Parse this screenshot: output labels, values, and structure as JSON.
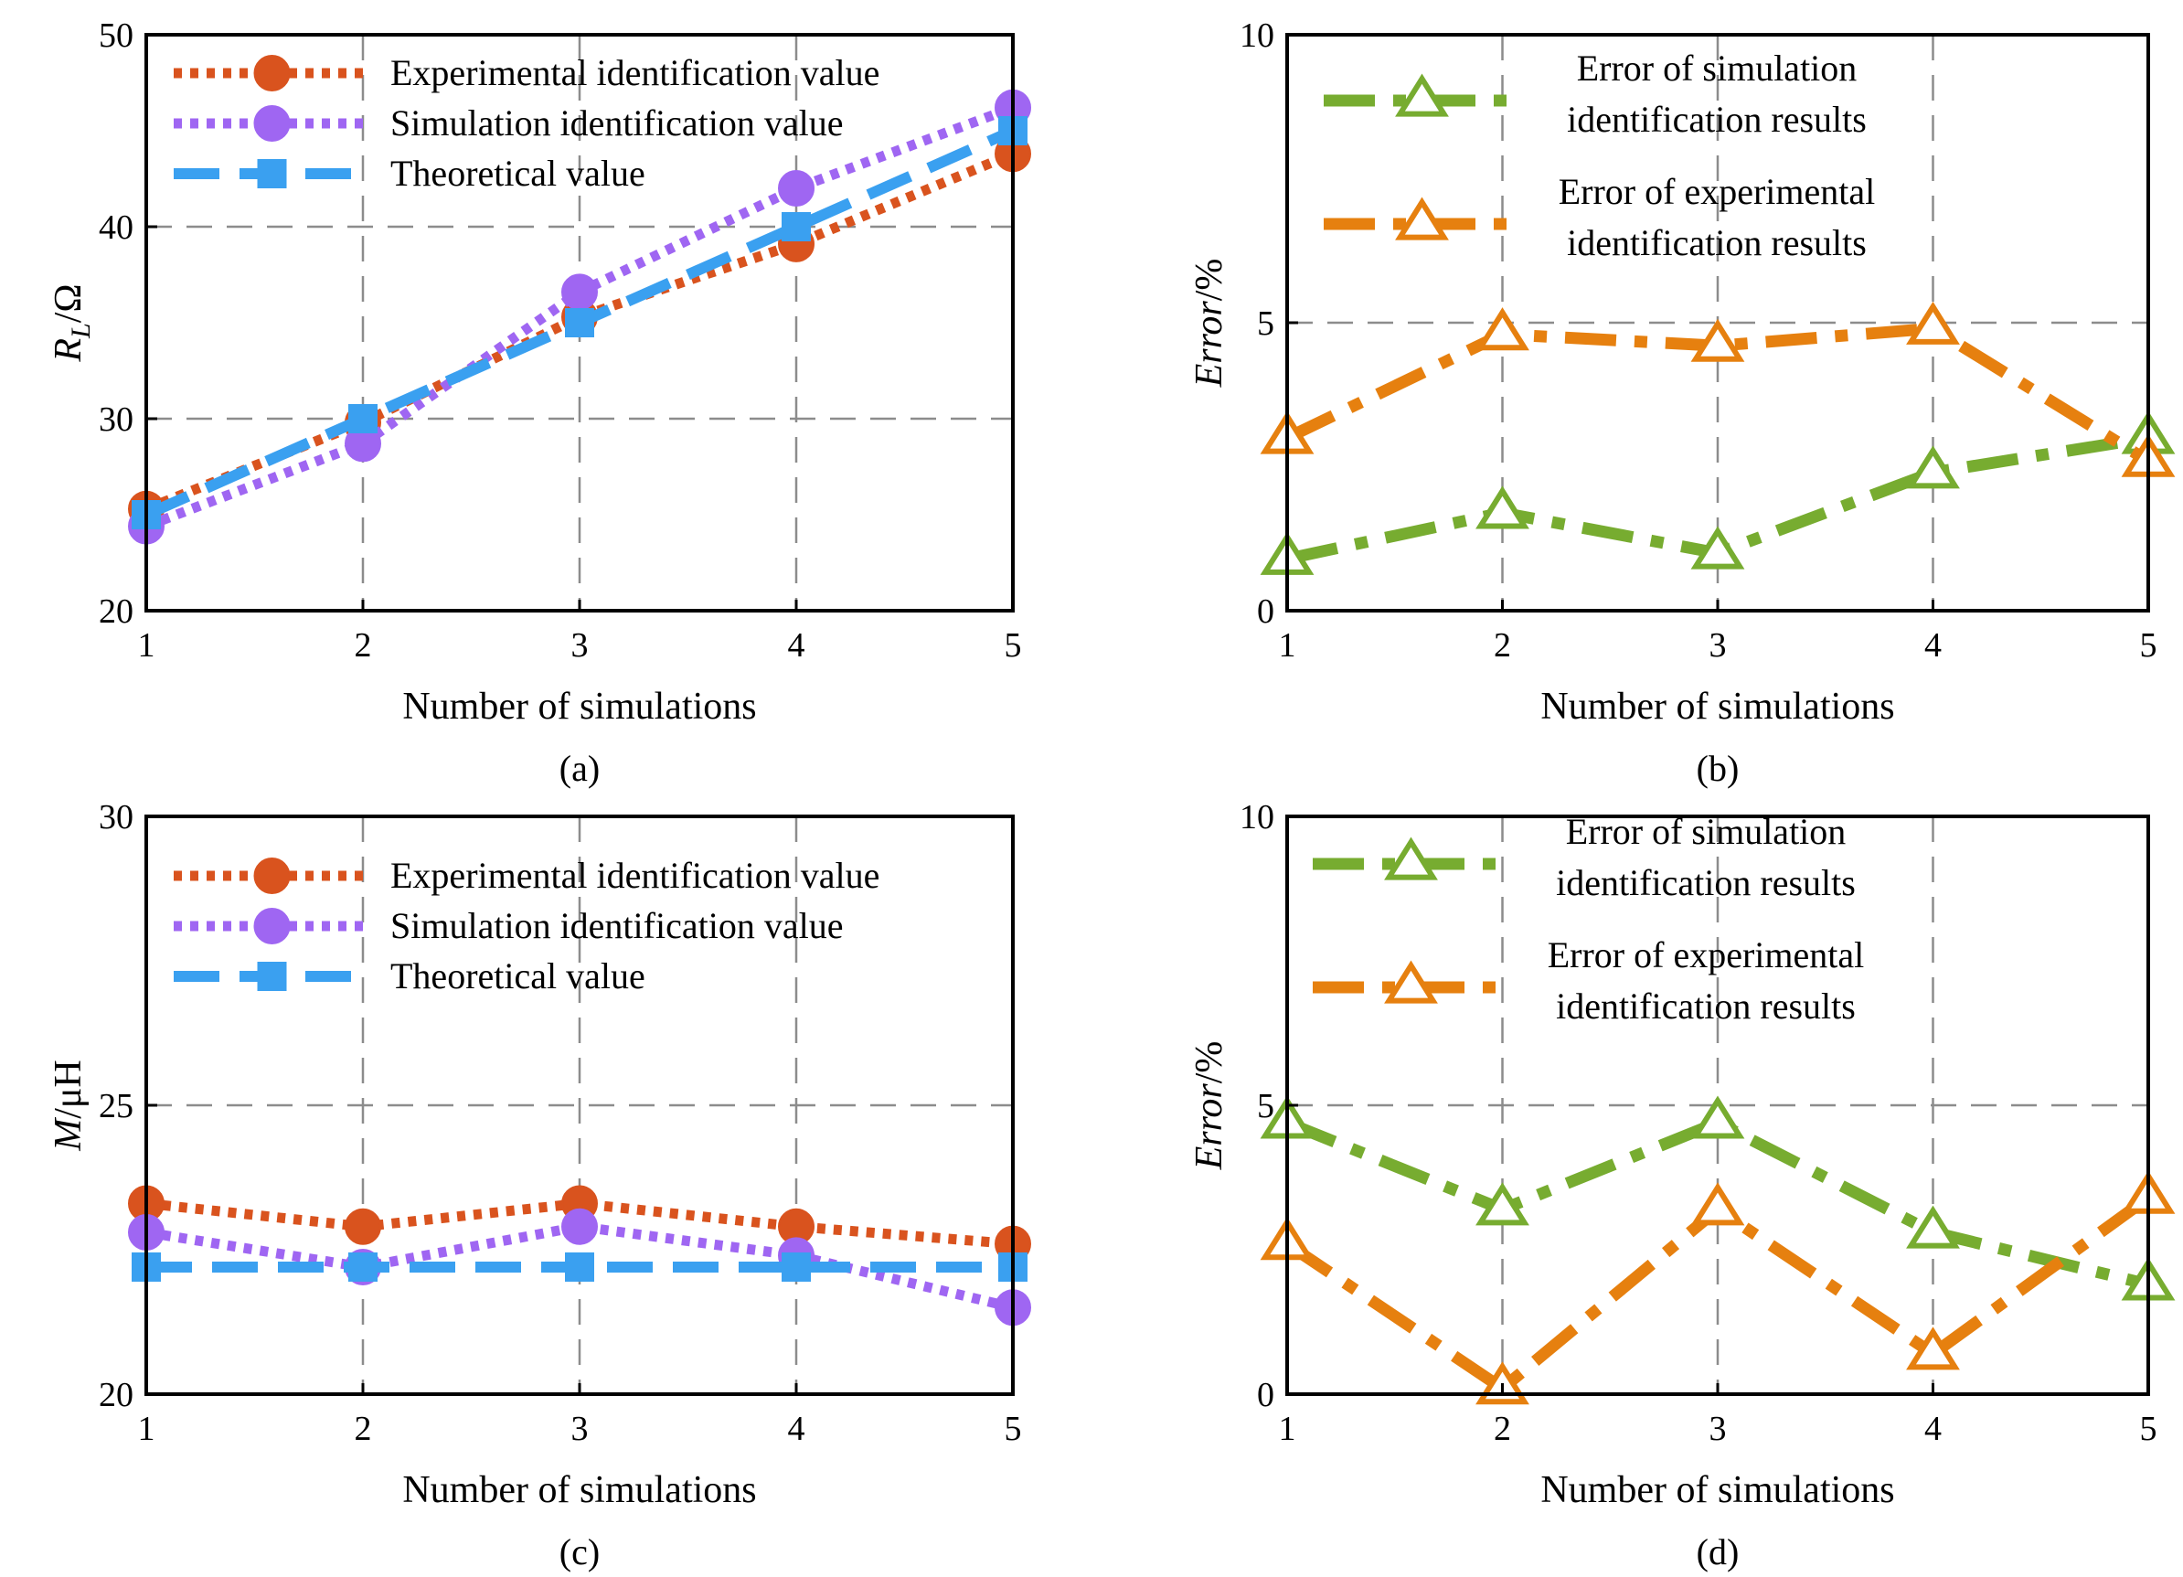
{
  "colors": {
    "experimental": "#d9531e",
    "simulation": "#9f66f2",
    "theoretical": "#3aa0f0",
    "error_sim": "#77ac30",
    "error_exp": "#e6800f",
    "grid": "#8c8c8c",
    "axis": "#000000"
  },
  "chart_data": [
    {
      "id": "a",
      "type": "line",
      "caption": "(a)",
      "xlabel": "Number of simulations",
      "ylabel_main": "R",
      "ylabel_sub": "L",
      "ylabel_rest": "/Ω",
      "x": [
        1,
        2,
        3,
        4,
        5
      ],
      "xlim": [
        1,
        5
      ],
      "ylim": [
        20,
        50
      ],
      "xticks": [
        1,
        2,
        3,
        4,
        5
      ],
      "yticks": [
        20,
        30,
        40,
        50
      ],
      "grid": true,
      "legend_position": "top-left",
      "series": [
        {
          "name": "Experimental identification value",
          "style": "experimental",
          "values": [
            25.3,
            29.8,
            35.3,
            39.1,
            43.8
          ]
        },
        {
          "name": "Simulation identification value",
          "style": "simulation",
          "values": [
            24.4,
            28.7,
            36.6,
            42.0,
            46.2
          ]
        },
        {
          "name": "Theoretical value",
          "style": "theoretical",
          "values": [
            25.0,
            30.0,
            35.0,
            40.0,
            45.0
          ]
        }
      ]
    },
    {
      "id": "b",
      "type": "line",
      "caption": "(b)",
      "xlabel": "Number of simulations",
      "ylabel": "Error/%",
      "x": [
        1,
        2,
        3,
        4,
        5
      ],
      "xlim": [
        1,
        5
      ],
      "ylim": [
        0,
        10
      ],
      "xticks": [
        1,
        2,
        3,
        4,
        5
      ],
      "yticks": [
        0,
        5,
        10
      ],
      "grid": true,
      "legend_position": "top-right",
      "series": [
        {
          "name": "Error of simulation identification results",
          "legend_lines": [
            "Error of simulation",
            "identification results"
          ],
          "style": "error_sim",
          "values": [
            0.9,
            1.7,
            1.0,
            2.4,
            3.0
          ]
        },
        {
          "name": "Error of experimental identification results",
          "legend_lines": [
            "Error of experimental",
            "identification results"
          ],
          "style": "error_exp",
          "values": [
            3.0,
            4.8,
            4.6,
            4.9,
            2.6
          ]
        }
      ]
    },
    {
      "id": "c",
      "type": "line",
      "caption": "(c)",
      "xlabel": "Number of simulations",
      "ylabel": "M/μH",
      "x": [
        1,
        2,
        3,
        4,
        5
      ],
      "xlim": [
        1,
        5
      ],
      "ylim": [
        20,
        30
      ],
      "xticks": [
        1,
        2,
        3,
        4,
        5
      ],
      "yticks": [
        20,
        25,
        30
      ],
      "grid": true,
      "legend_position": "top-left",
      "series": [
        {
          "name": "Experimental identification value",
          "style": "experimental",
          "values": [
            23.3,
            22.9,
            23.3,
            22.9,
            22.6
          ]
        },
        {
          "name": "Simulation identification value",
          "style": "simulation",
          "values": [
            22.8,
            22.2,
            22.9,
            22.4,
            21.5
          ]
        },
        {
          "name": "Theoretical value",
          "style": "theoretical",
          "values": [
            22.2,
            22.2,
            22.2,
            22.2,
            22.2
          ]
        }
      ]
    },
    {
      "id": "d",
      "type": "line",
      "caption": "(d)",
      "xlabel": "Number of simulations",
      "ylabel": "Error/%",
      "x": [
        1,
        2,
        3,
        4,
        5
      ],
      "xlim": [
        1,
        5
      ],
      "ylim": [
        0,
        10
      ],
      "xticks": [
        1,
        2,
        3,
        4,
        5
      ],
      "yticks": [
        0,
        5,
        10
      ],
      "grid": true,
      "legend_position": "top-right",
      "series": [
        {
          "name": "Error of simulation identification results",
          "legend_lines": [
            "Error of simulation",
            "identification results"
          ],
          "style": "error_sim",
          "values": [
            4.7,
            3.2,
            4.7,
            2.8,
            1.9
          ]
        },
        {
          "name": "Error of experimental identification results",
          "legend_lines": [
            "Error of experimental",
            "identification results"
          ],
          "style": "error_exp",
          "values": [
            2.6,
            0.1,
            3.2,
            0.7,
            3.4
          ]
        }
      ]
    }
  ]
}
